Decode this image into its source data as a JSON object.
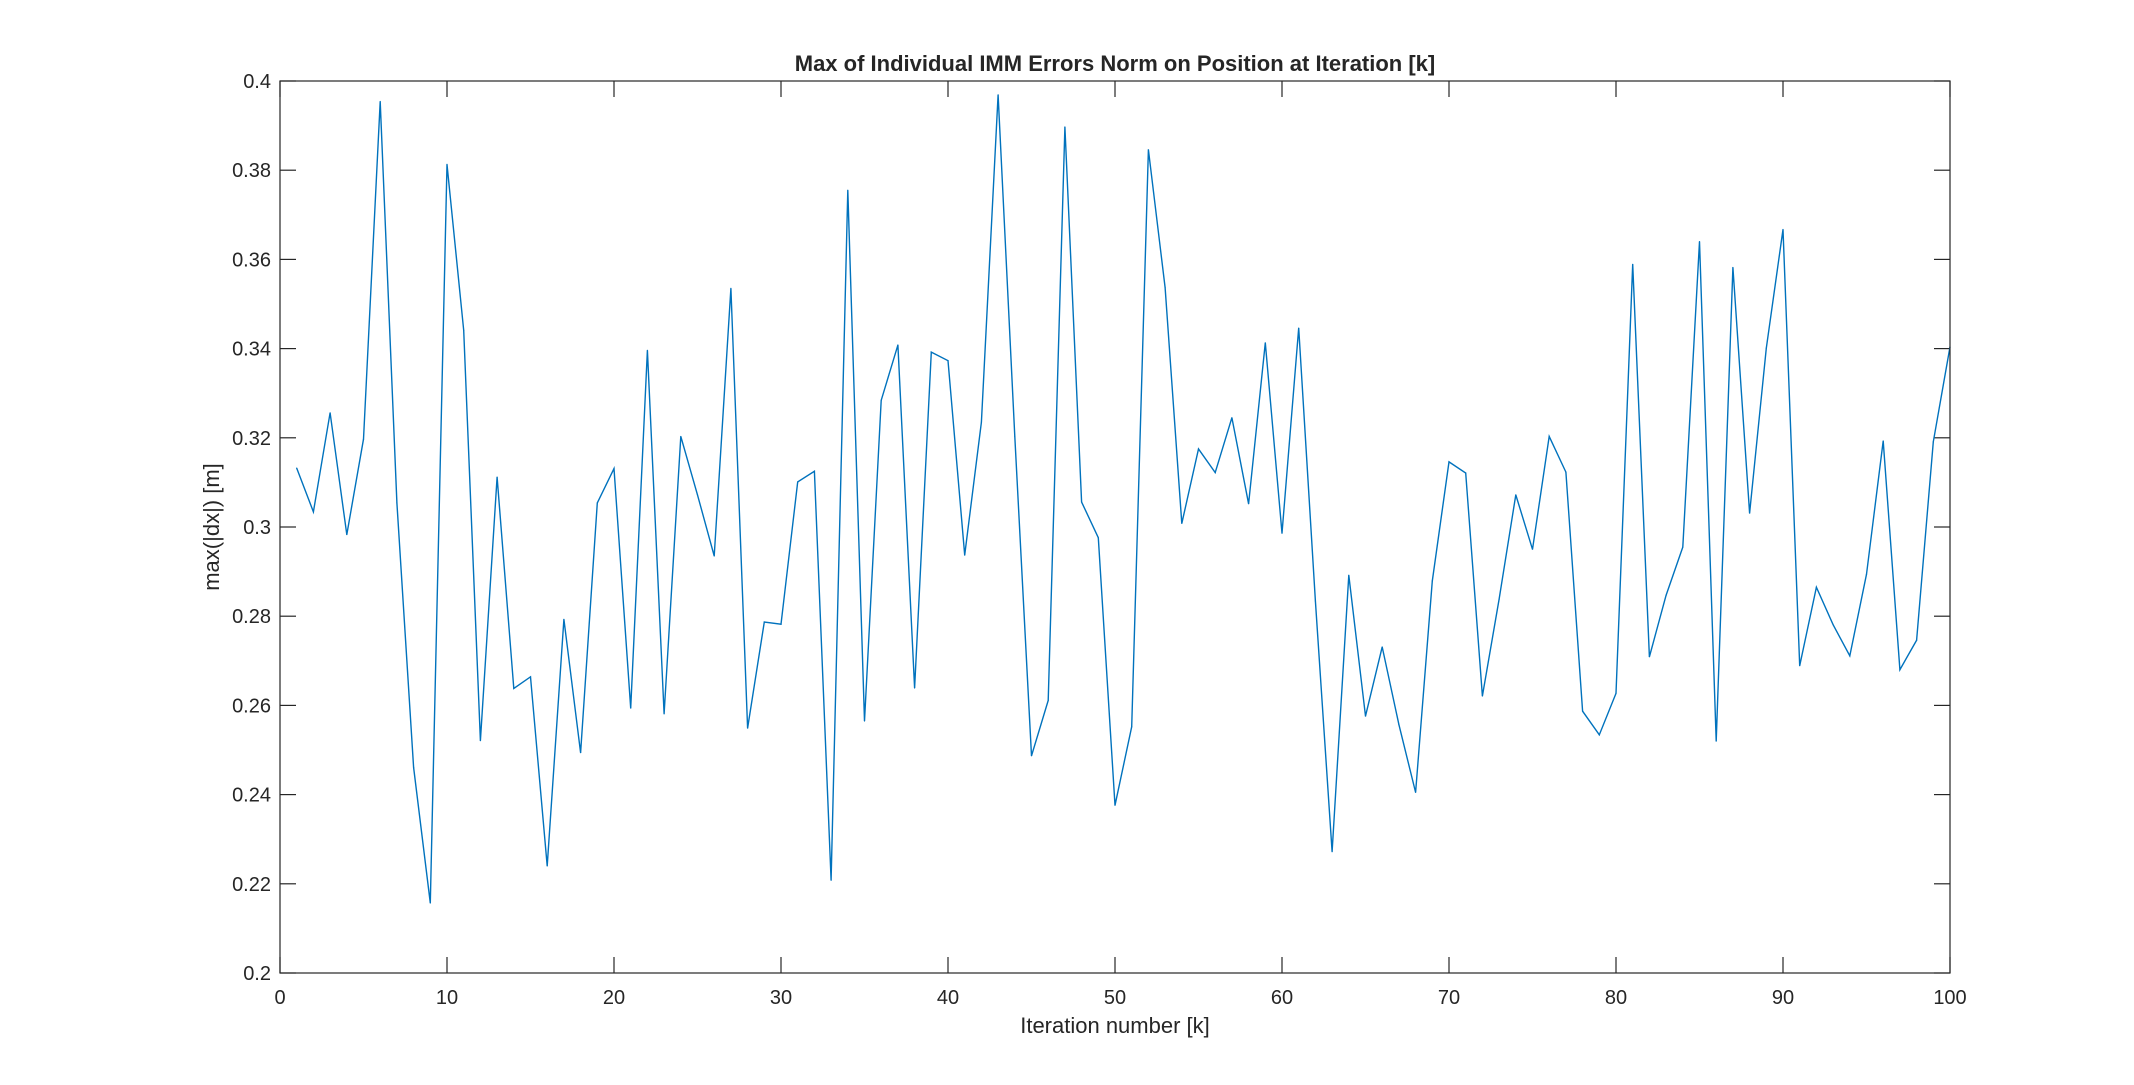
{
  "chart_data": {
    "type": "line",
    "title": "Max of Individual IMM Errors Norm on Position at Iteration [k]",
    "xlabel": "Iteration number [k]",
    "ylabel": "max(|dx|) [m]",
    "xlim": [
      0,
      100
    ],
    "ylim": [
      0.2,
      0.4
    ],
    "xticks": [
      0,
      10,
      20,
      30,
      40,
      50,
      60,
      70,
      80,
      90,
      100
    ],
    "xtick_labels": [
      "0",
      "10",
      "20",
      "30",
      "40",
      "50",
      "60",
      "70",
      "80",
      "90",
      "100"
    ],
    "yticks": [
      0.2,
      0.22,
      0.24,
      0.26,
      0.28,
      0.3,
      0.32,
      0.34,
      0.36,
      0.38,
      0.4
    ],
    "ytick_labels": [
      "0.2",
      "0.22",
      "0.24",
      "0.26",
      "0.28",
      "0.3",
      "0.32",
      "0.34",
      "0.36",
      "0.38",
      "0.4"
    ],
    "grid": false,
    "legend": "none",
    "series_color": "#0072bd",
    "series": [
      {
        "x": [
          1,
          2,
          3,
          4,
          5,
          6,
          7,
          8,
          9,
          10,
          11,
          12,
          13,
          14,
          15,
          16,
          17,
          18,
          19,
          20,
          21,
          22,
          23,
          24,
          25,
          26,
          27,
          28,
          29,
          30,
          31,
          32,
          33,
          34,
          35,
          36,
          37,
          38,
          39,
          40,
          41,
          42,
          43,
          44,
          45,
          46,
          47,
          48,
          49,
          50,
          51,
          52,
          53,
          54,
          55,
          56,
          57,
          58,
          59,
          60,
          61,
          62,
          63,
          64,
          65,
          66,
          67,
          68,
          69,
          70,
          71,
          72,
          73,
          74,
          75,
          76,
          77,
          78,
          79,
          80,
          81,
          82,
          83,
          84,
          85,
          86,
          87,
          88,
          89,
          90,
          91,
          92,
          93,
          94,
          95,
          96,
          97,
          98,
          99,
          100
        ],
        "values": [
          0.3132,
          0.3034,
          0.3256,
          0.2983,
          0.3197,
          0.3954,
          0.3054,
          0.2461,
          0.2157,
          0.3813,
          0.3441,
          0.2521,
          0.3112,
          0.2638,
          0.2664,
          0.224,
          0.2793,
          0.2494,
          0.3054,
          0.3131,
          0.2594,
          0.3396,
          0.2581,
          0.3203,
          0.3072,
          0.2935,
          0.3535,
          0.2549,
          0.2787,
          0.2782,
          0.3101,
          0.3125,
          0.2208,
          0.3755,
          0.2565,
          0.3284,
          0.3408,
          0.2639,
          0.3392,
          0.3373,
          0.2937,
          0.3235,
          0.3969,
          0.3203,
          0.2487,
          0.2611,
          0.3897,
          0.3056,
          0.2976,
          0.2376,
          0.2552,
          0.3846,
          0.3537,
          0.3008,
          0.3175,
          0.3122,
          0.3245,
          0.3052,
          0.3413,
          0.2986,
          0.3446,
          0.2834,
          0.2272,
          0.2892,
          0.2576,
          0.2731,
          0.2557,
          0.2405,
          0.2879,
          0.3146,
          0.3121,
          0.2621,
          0.2838,
          0.3072,
          0.295,
          0.3203,
          0.3123,
          0.2587,
          0.2534,
          0.2627,
          0.3589,
          0.2709,
          0.2847,
          0.2955,
          0.364,
          0.252,
          0.3582,
          0.3031,
          0.3401,
          0.3667,
          0.2689,
          0.2865,
          0.2781,
          0.2711,
          0.2894,
          0.3193,
          0.268,
          0.2746,
          0.3191,
          0.3404
        ]
      }
    ]
  }
}
